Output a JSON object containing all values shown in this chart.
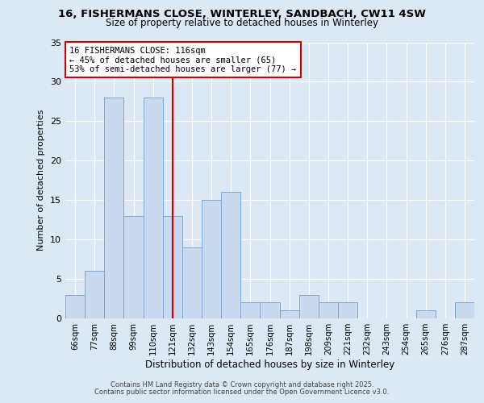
{
  "title_line1": "16, FISHERMANS CLOSE, WINTERLEY, SANDBACH, CW11 4SW",
  "title_line2": "Size of property relative to detached houses in Winterley",
  "xlabel": "Distribution of detached houses by size in Winterley",
  "ylabel": "Number of detached properties",
  "bar_labels": [
    "66sqm",
    "77sqm",
    "88sqm",
    "99sqm",
    "110sqm",
    "121sqm",
    "132sqm",
    "143sqm",
    "154sqm",
    "165sqm",
    "176sqm",
    "187sqm",
    "198sqm",
    "209sqm",
    "221sqm",
    "232sqm",
    "243sqm",
    "254sqm",
    "265sqm",
    "276sqm",
    "287sqm"
  ],
  "bar_values": [
    3,
    6,
    28,
    13,
    28,
    13,
    9,
    15,
    16,
    2,
    2,
    1,
    3,
    2,
    2,
    0,
    0,
    0,
    1,
    0,
    2
  ],
  "bar_color": "#c9d9f0",
  "bar_edge_color": "#7ba7d4",
  "vline_x": 5.0,
  "vline_color": "#cc0000",
  "annotation_title": "16 FISHERMANS CLOSE: 116sqm",
  "annotation_line2": "← 45% of detached houses are smaller (65)",
  "annotation_line3": "53% of semi-detached houses are larger (77) →",
  "annotation_box_facecolor": "#ffffff",
  "annotation_box_edgecolor": "#cc0000",
  "ylim": [
    0,
    35
  ],
  "yticks": [
    0,
    5,
    10,
    15,
    20,
    25,
    30,
    35
  ],
  "footer_line1": "Contains HM Land Registry data © Crown copyright and database right 2025.",
  "footer_line2": "Contains public sector information licensed under the Open Government Licence v3.0.",
  "background_color": "#dde8f5",
  "plot_bg_color": "#dde8f5",
  "grid_color": "#ffffff"
}
